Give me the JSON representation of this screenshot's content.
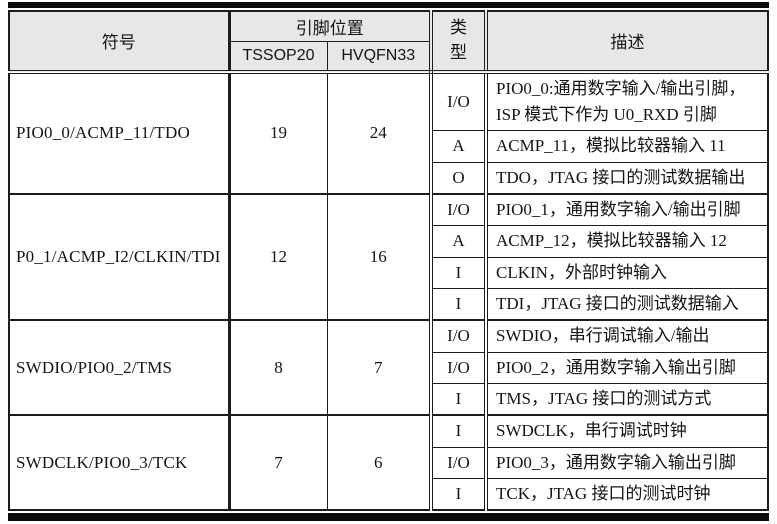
{
  "colors": {
    "header_bg": "#e7e7e5",
    "border": "#1c1c1c",
    "text": "#141414"
  },
  "header": {
    "symbol": "符号",
    "pin_position": "引脚位置",
    "tssop20": "TSSOP20",
    "hvqfn33": "HVQFN33",
    "type_line1": "类",
    "type_line2": "型",
    "description": "描述"
  },
  "rows": [
    {
      "symbol": "PIO0_0/ACMP_11/TDO",
      "tssop20": "19",
      "hvqfn33": "24",
      "entries": [
        {
          "type": "I/O",
          "desc": "PIO0_0:通用数字输入/输出引脚，ISP 模式下作为 U0_RXD 引脚"
        },
        {
          "type": "A",
          "desc": "ACMP_11，模拟比较器输入 11"
        },
        {
          "type": "O",
          "desc": "TDO，JTAG 接口的测试数据输出"
        }
      ]
    },
    {
      "symbol": "P0_1/ACMP_I2/CLKIN/TDI",
      "tssop20": "12",
      "hvqfn33": "16",
      "entries": [
        {
          "type": "I/O",
          "desc": "PIO0_1，通用数字输入/输出引脚"
        },
        {
          "type": "A",
          "desc": "ACMP_12，模拟比较器输入 12"
        },
        {
          "type": "I",
          "desc": "CLKIN，外部时钟输入"
        },
        {
          "type": "I",
          "desc": "TDI，JTAG 接口的测试数据输入"
        }
      ]
    },
    {
      "symbol": "SWDIO/PIO0_2/TMS",
      "tssop20": "8",
      "hvqfn33": "7",
      "entries": [
        {
          "type": "I/O",
          "desc": "SWDIO，串行调试输入/输出"
        },
        {
          "type": "I/O",
          "desc": "PIO0_2，通用数字输入输出引脚"
        },
        {
          "type": "I",
          "desc": "TMS，JTAG 接口的测试方式"
        }
      ]
    },
    {
      "symbol": "SWDCLK/PIO0_3/TCK",
      "tssop20": "7",
      "hvqfn33": "6",
      "entries": [
        {
          "type": "I",
          "desc": "SWDCLK，串行调试时钟"
        },
        {
          "type": "I/O",
          "desc": "PIO0_3，通用数字输入输出引脚"
        },
        {
          "type": "I",
          "desc": "TCK，JTAG 接口的测试时钟"
        }
      ]
    }
  ]
}
